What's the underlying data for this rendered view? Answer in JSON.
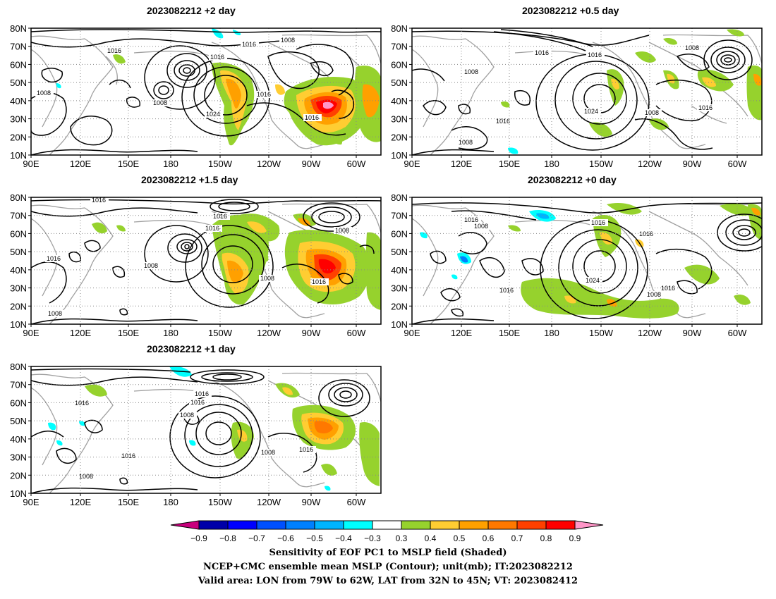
{
  "panels": [
    {
      "id": "p2",
      "title": "2023082212 +2 day",
      "lat_ticks": [
        "80N",
        "70N",
        "60N",
        "50N",
        "40N",
        "30N",
        "20N",
        "10N"
      ],
      "lon_ticks": [
        "90E",
        "120E",
        "150E",
        "180",
        "150W",
        "120W",
        "90W",
        "60W"
      ],
      "contour_labels": [
        "1016",
        "1016",
        "1008",
        "1016",
        "1008",
        "1008",
        "1024",
        "1016",
        "1016"
      ]
    },
    {
      "id": "p05",
      "title": "2023082212 +0.5 day",
      "lat_ticks": [
        "80N",
        "70N",
        "60N",
        "50N",
        "40N",
        "30N",
        "20N",
        "10N"
      ],
      "lon_ticks": [
        "90E",
        "120E",
        "150E",
        "180",
        "150W",
        "120W",
        "90W",
        "60W"
      ],
      "contour_labels": [
        "1016",
        "1016",
        "1008",
        "1008",
        "1016",
        "1024",
        "1008",
        "1016",
        "1008"
      ]
    },
    {
      "id": "p15",
      "title": "2023082212 +1.5 day",
      "lat_ticks": [
        "80N",
        "70N",
        "60N",
        "50N",
        "40N",
        "30N",
        "20N",
        "10N"
      ],
      "lon_ticks": [
        "90E",
        "120E",
        "150E",
        "180",
        "150W",
        "120W",
        "90W",
        "60W"
      ],
      "contour_labels": [
        "1016",
        "1016",
        "1016",
        "1008",
        "1008",
        "1016",
        "1008",
        "1016",
        "1008"
      ]
    },
    {
      "id": "p0",
      "title": "2023082212 +0 day",
      "lat_ticks": [
        "80N",
        "70N",
        "60N",
        "50N",
        "40N",
        "30N",
        "20N",
        "10N"
      ],
      "lon_ticks": [
        "90E",
        "120E",
        "150E",
        "180",
        "150W",
        "120W",
        "90W",
        "60W"
      ],
      "contour_labels": [
        "1016",
        "1008",
        "1016",
        "1016",
        "1016",
        "1024",
        "1016",
        "1008"
      ]
    },
    {
      "id": "p1",
      "title": "2023082212 +1 day",
      "lat_ticks": [
        "80N",
        "70N",
        "60N",
        "50N",
        "40N",
        "30N",
        "20N",
        "10N"
      ],
      "lon_ticks": [
        "90E",
        "120E",
        "150E",
        "180",
        "150W",
        "120W",
        "90W",
        "60W"
      ],
      "contour_labels": [
        "1016",
        "1016",
        "1016",
        "1008",
        "1016",
        "1008",
        "1016",
        "1008"
      ]
    }
  ],
  "colorbar": {
    "labels": [
      "-0.9",
      "-0.8",
      "-0.7",
      "-0.6",
      "-0.5",
      "-0.4",
      "-0.3",
      "0.3",
      "0.4",
      "0.5",
      "0.6",
      "0.7",
      "0.8",
      "0.9"
    ],
    "colors": [
      "#0000a8",
      "#0000ff",
      "#0050ff",
      "#0080ff",
      "#00b4ff",
      "#00ffff",
      "#ffffff",
      "#96d22d",
      "#ffcd32",
      "#ffa000",
      "#ff7800",
      "#ff4000",
      "#ff0000"
    ],
    "low_color": "#c8007d",
    "high_color": "#ff96c8"
  },
  "caption": {
    "line1": "Sensitivity of EOF PC1 to MSLP field (Shaded)",
    "line2": "NCEP+CMC ensemble mean MSLP (Contour); unit(mb); IT:2023082212",
    "line3": "Valid area: LON from 79W to 62W, LAT from 32N to 45N; VT: 2023082412"
  }
}
